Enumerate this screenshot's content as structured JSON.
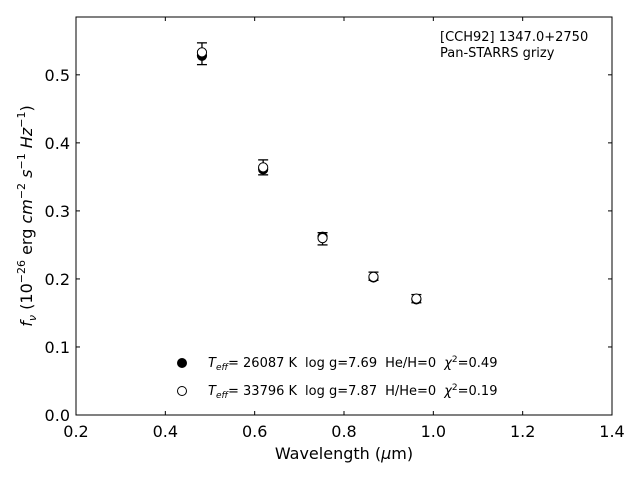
{
  "chart_data": {
    "type": "scatter",
    "xlabel": "Wavelength (μm)",
    "ylabel": "f_ν (10^-26 erg cm^-2 s^-1 Hz^-1)",
    "xlim": [
      0.2,
      1.4
    ],
    "ylim": [
      0.0,
      0.585
    ],
    "x_ticks": [
      0.2,
      0.4,
      0.6,
      0.8,
      1.0,
      1.2,
      1.4
    ],
    "y_ticks": [
      0.0,
      0.1,
      0.2,
      0.3,
      0.4,
      0.5
    ],
    "x_tick_labels": [
      "0.2",
      "0.4",
      "0.6",
      "0.8",
      "1.0",
      "1.2",
      "1.4"
    ],
    "y_tick_labels": [
      "0.0",
      "0.1",
      "0.2",
      "0.3",
      "0.4",
      "0.5"
    ],
    "grid": false,
    "annotation": [
      "[CCH92] 1347.0+2750",
      "Pan-STARRS grizy"
    ],
    "observed": {
      "x": [
        0.482,
        0.619,
        0.752,
        0.866,
        0.962
      ],
      "y": [
        0.531,
        0.364,
        0.259,
        0.204,
        0.171
      ],
      "yerr": [
        0.016,
        0.011,
        0.009,
        0.006,
        0.006
      ]
    },
    "series": [
      {
        "name": "T_eff= 26087 K  log g=7.69  He/H=0  χ²=0.49",
        "marker": "filled-circle",
        "color": "#000000",
        "x": [
          0.482,
          0.619,
          0.752,
          0.866,
          0.962
        ],
        "y": [
          0.528,
          0.361,
          0.262,
          0.202,
          0.17
        ]
      },
      {
        "name": "T_eff= 33796 K  log g=7.87  H/He=0  χ²=0.19",
        "marker": "open-circle",
        "color": "#000000",
        "x": [
          0.482,
          0.619,
          0.752,
          0.866,
          0.962
        ],
        "y": [
          0.533,
          0.364,
          0.26,
          0.203,
          0.171
        ]
      }
    ],
    "legend": {
      "placement": "lower-center",
      "entries": [
        {
          "teff_value": "= 26087 K",
          "logg": "log g=7.69",
          "comp": "He/H=0",
          "chi2": "=0.49"
        },
        {
          "teff_value": "= 33796 K",
          "logg": "log g=7.87",
          "comp": "H/He=0",
          "chi2": "=0.19"
        }
      ]
    }
  }
}
